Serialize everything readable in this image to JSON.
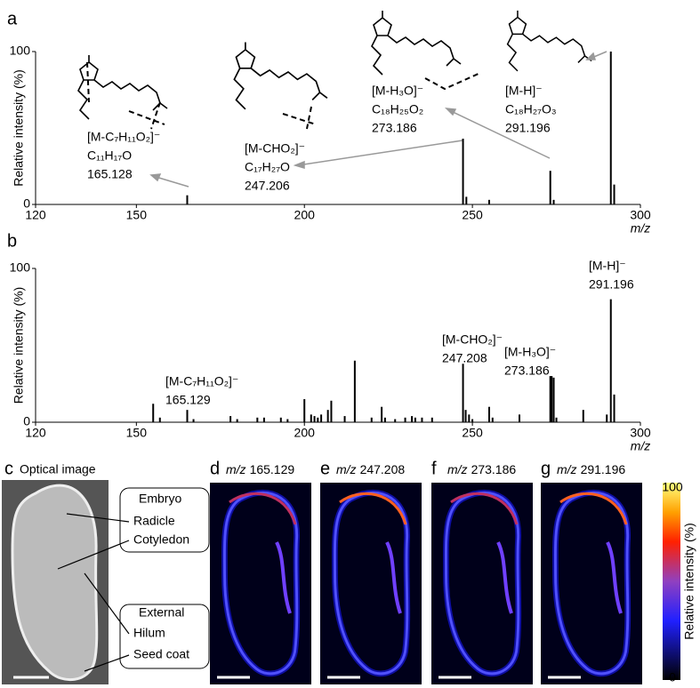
{
  "chart_data": [
    {
      "type": "bar",
      "panel_label": "a",
      "xlabel": "m/z",
      "ylabel": "Relative intensity (%)",
      "color": "#000000",
      "x": [
        165.128,
        247.206,
        248.2,
        255.0,
        273.186,
        274.2,
        291.196,
        292.2
      ],
      "values": [
        6,
        43,
        5,
        3,
        22,
        3,
        100,
        13
      ],
      "xlim": [
        120,
        300
      ],
      "ylim": [
        0,
        100
      ],
      "xticks": [
        120,
        150,
        200,
        250,
        300
      ],
      "yticks": [
        0,
        100
      ],
      "annotations": [
        {
          "ion": "[M-C₇H₁₁O₂]⁻",
          "formula": "C₁₁H₁₇O",
          "mz": "165.128"
        },
        {
          "ion": "[M-CHO₂]⁻",
          "formula": "C₁₇H₂₇O",
          "mz": "247.206"
        },
        {
          "ion": "[M-H₃O]⁻",
          "formula": "C₁₈H₂₅O₂",
          "mz": "273.186"
        },
        {
          "ion": "[M-H]⁻",
          "formula": "C₁₈H₂₇O₃",
          "mz": "291.196"
        }
      ]
    },
    {
      "type": "bar",
      "panel_label": "b",
      "xlabel": "m/z",
      "ylabel": "Relative intensity (%)",
      "color": "#000000",
      "x": [
        155,
        157,
        165.129,
        167,
        178,
        180,
        186,
        188,
        193,
        195,
        200,
        202,
        203,
        204,
        205,
        207,
        208,
        212,
        215,
        220,
        223,
        224,
        227,
        230,
        232,
        233,
        235,
        238,
        247.208,
        248,
        249,
        250,
        255,
        256,
        264,
        273.186,
        273.6,
        274.2,
        275,
        283,
        290,
        291.196,
        292.2
      ],
      "values": [
        12,
        3,
        8,
        2,
        4,
        2,
        3,
        3,
        3,
        2,
        15,
        5,
        4,
        3,
        5,
        8,
        14,
        4,
        40,
        3,
        10,
        3,
        2,
        3,
        4,
        3,
        3,
        3,
        38,
        8,
        5,
        2,
        10,
        3,
        5,
        30,
        30,
        29,
        3,
        8,
        5,
        80,
        18
      ],
      "xlim": [
        120,
        300
      ],
      "ylim": [
        0,
        100
      ],
      "xticks": [
        120,
        150,
        200,
        250,
        300
      ],
      "yticks": [
        0,
        100
      ],
      "annotations": [
        {
          "ion": "[M-C₇H₁₁O₂]⁻",
          "mz": "165.129"
        },
        {
          "ion": "[M-CHO₂]⁻",
          "mz": "247.208"
        },
        {
          "ion": "[M-H₃O]⁻",
          "mz": "273.186"
        },
        {
          "ion": "[M-H]⁻",
          "mz": "291.196"
        }
      ]
    }
  ],
  "optical": {
    "panel_label": "c",
    "title": "Optical image",
    "callouts": [
      [
        "Embryo",
        "Radicle",
        "Cotyledon"
      ],
      [
        "External",
        "Hilum",
        "Seed coat"
      ]
    ]
  },
  "images": [
    {
      "panel_label": "d",
      "unit": "m/z",
      "mz": "165.129"
    },
    {
      "panel_label": "e",
      "unit": "m/z",
      "mz": "247.208"
    },
    {
      "panel_label": "f",
      "unit": "m/z",
      "mz": "273.186"
    },
    {
      "panel_label": "g",
      "unit": "m/z",
      "mz": "291.196"
    }
  ],
  "colorbar": {
    "label": "Relative intensity (%)",
    "ticks": [
      0,
      100
    ]
  }
}
